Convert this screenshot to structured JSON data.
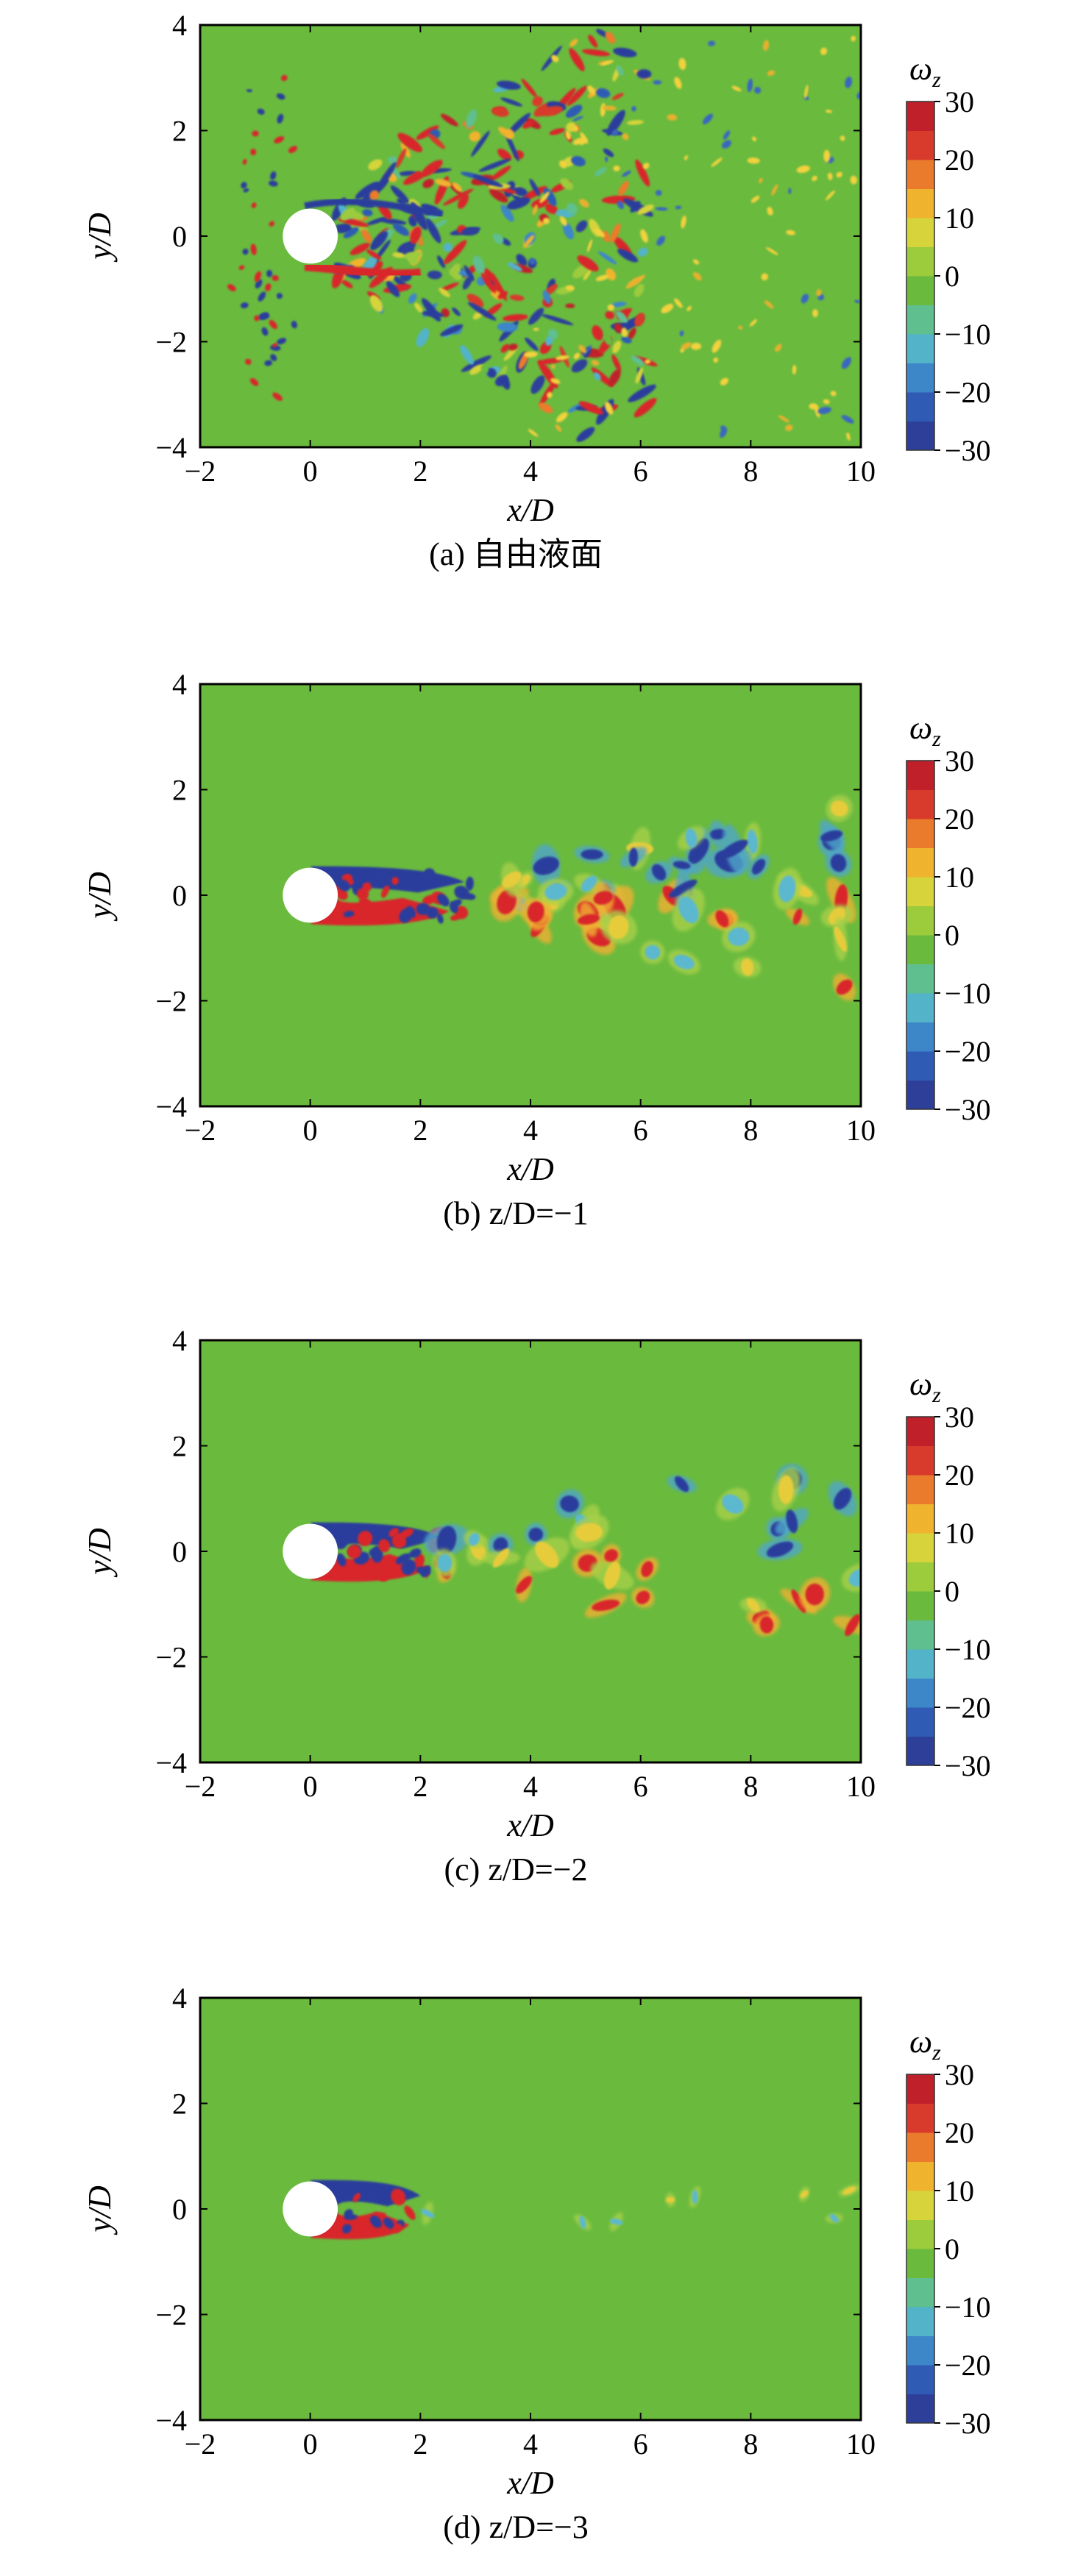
{
  "chart_data": [
    {
      "type": "heatmap",
      "caption": "(a) 自由液面",
      "xlabel": "x/D",
      "ylabel": "y/D",
      "xlim": [
        -2,
        10
      ],
      "ylim": [
        -4,
        4
      ],
      "xticks": [
        "−2",
        "0",
        "2",
        "4",
        "6",
        "8",
        "10"
      ],
      "yticks": [
        "4",
        "2",
        "0",
        "−2",
        "−4"
      ],
      "colorbar": {
        "label": "ω_z",
        "range": [
          -30,
          30
        ],
        "ticks": [
          "30",
          "20",
          "10",
          "0",
          "−10",
          "−20",
          "−30"
        ]
      },
      "cylinder": {
        "x": 0,
        "y": 0,
        "diameter": 1
      },
      "wake_pattern": "dispersed free-surface vorticity, V-shaped front"
    },
    {
      "type": "heatmap",
      "caption": "(b) z/D=−1",
      "xlabel": "x/D",
      "ylabel": "y/D",
      "xlim": [
        -2,
        10
      ],
      "ylim": [
        -4,
        4
      ],
      "xticks": [
        "−2",
        "0",
        "2",
        "4",
        "6",
        "8",
        "10"
      ],
      "yticks": [
        "4",
        "2",
        "0",
        "−2",
        "−4"
      ],
      "colorbar": {
        "label": "ω_z",
        "range": [
          -30,
          30
        ],
        "ticks": [
          "30",
          "20",
          "10",
          "0",
          "−10",
          "−20",
          "−30"
        ]
      },
      "cylinder": {
        "x": 0,
        "y": 0,
        "diameter": 1
      },
      "wake_pattern": "turbulent vortex wake"
    },
    {
      "type": "heatmap",
      "caption": "(c) z/D=−2",
      "xlabel": "x/D",
      "ylabel": "y/D",
      "xlim": [
        -2,
        10
      ],
      "ylim": [
        -4,
        4
      ],
      "xticks": [
        "−2",
        "0",
        "2",
        "4",
        "6",
        "8",
        "10"
      ],
      "yticks": [
        "4",
        "2",
        "0",
        "−2",
        "−4"
      ],
      "colorbar": {
        "label": "ω_z",
        "range": [
          -30,
          30
        ],
        "ticks": [
          "30",
          "20",
          "10",
          "0",
          "−10",
          "−20",
          "−30"
        ]
      },
      "cylinder": {
        "x": 0,
        "y": 0,
        "diameter": 1
      },
      "wake_pattern": "vortex street wake"
    },
    {
      "type": "heatmap",
      "caption": "(d) z/D=−3",
      "xlabel": "x/D",
      "ylabel": "y/D",
      "xlim": [
        -2,
        10
      ],
      "ylim": [
        -4,
        4
      ],
      "xticks": [
        "−2",
        "0",
        "2",
        "4",
        "6",
        "8",
        "10"
      ],
      "yticks": [
        "4",
        "2",
        "0",
        "−2",
        "−4"
      ],
      "colorbar": {
        "label": "ω_z",
        "range": [
          -30,
          30
        ],
        "ticks": [
          "30",
          "20",
          "10",
          "0",
          "−10",
          "−20",
          "−30"
        ]
      },
      "cylinder": {
        "x": 0,
        "y": 0,
        "diameter": 1
      },
      "wake_pattern": "weak short wake"
    }
  ],
  "colors": {
    "scale": [
      "#2e3f9a",
      "#2f5bb5",
      "#3d86c8",
      "#52b3c9",
      "#5fbf8f",
      "#6aba3e",
      "#9ccb3c",
      "#d6d43a",
      "#f0b32e",
      "#ea7b2c",
      "#d83a2b",
      "#c0202a"
    ],
    "background": "#6aba3e",
    "cylinder": "#ffffff"
  }
}
